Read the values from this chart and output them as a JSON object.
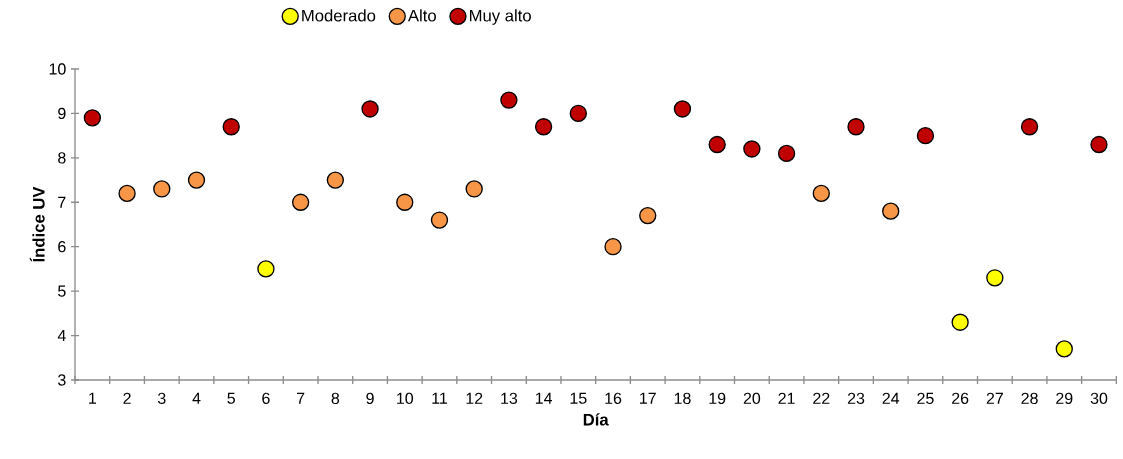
{
  "chart_data": {
    "type": "scatter",
    "xlabel": "Día",
    "ylabel": "Índice UV",
    "categories": [
      "1",
      "2",
      "3",
      "4",
      "5",
      "6",
      "7",
      "8",
      "9",
      "10",
      "11",
      "12",
      "13",
      "14",
      "15",
      "16",
      "17",
      "18",
      "19",
      "20",
      "21",
      "22",
      "23",
      "24",
      "25",
      "26",
      "27",
      "28",
      "29",
      "30"
    ],
    "series": [
      {
        "name": "Moderado",
        "color": "#ffff00",
        "values": [
          null,
          null,
          null,
          null,
          null,
          5.5,
          null,
          null,
          null,
          null,
          null,
          null,
          null,
          null,
          null,
          null,
          null,
          null,
          null,
          null,
          null,
          null,
          null,
          null,
          null,
          4.3,
          5.3,
          null,
          3.7,
          null
        ]
      },
      {
        "name": "Alto",
        "color": "#f79646",
        "values": [
          null,
          7.2,
          7.3,
          7.5,
          null,
          null,
          7.0,
          7.5,
          null,
          7.0,
          6.6,
          7.3,
          null,
          null,
          null,
          6.0,
          6.7,
          null,
          null,
          null,
          null,
          7.2,
          null,
          6.8,
          null,
          null,
          null,
          null,
          null,
          null
        ]
      },
      {
        "name": "Muy alto",
        "color": "#c00000",
        "values": [
          8.9,
          null,
          null,
          null,
          8.7,
          null,
          null,
          null,
          9.1,
          null,
          null,
          null,
          9.3,
          8.7,
          9.0,
          null,
          null,
          9.1,
          8.3,
          8.2,
          8.1,
          null,
          8.7,
          null,
          8.5,
          null,
          null,
          8.7,
          null,
          8.3
        ]
      }
    ],
    "ylim": [
      3,
      10
    ],
    "yticks": [
      3,
      4,
      5,
      6,
      7,
      8,
      9,
      10
    ],
    "grid": false,
    "legend": "top",
    "marker": "circle"
  }
}
